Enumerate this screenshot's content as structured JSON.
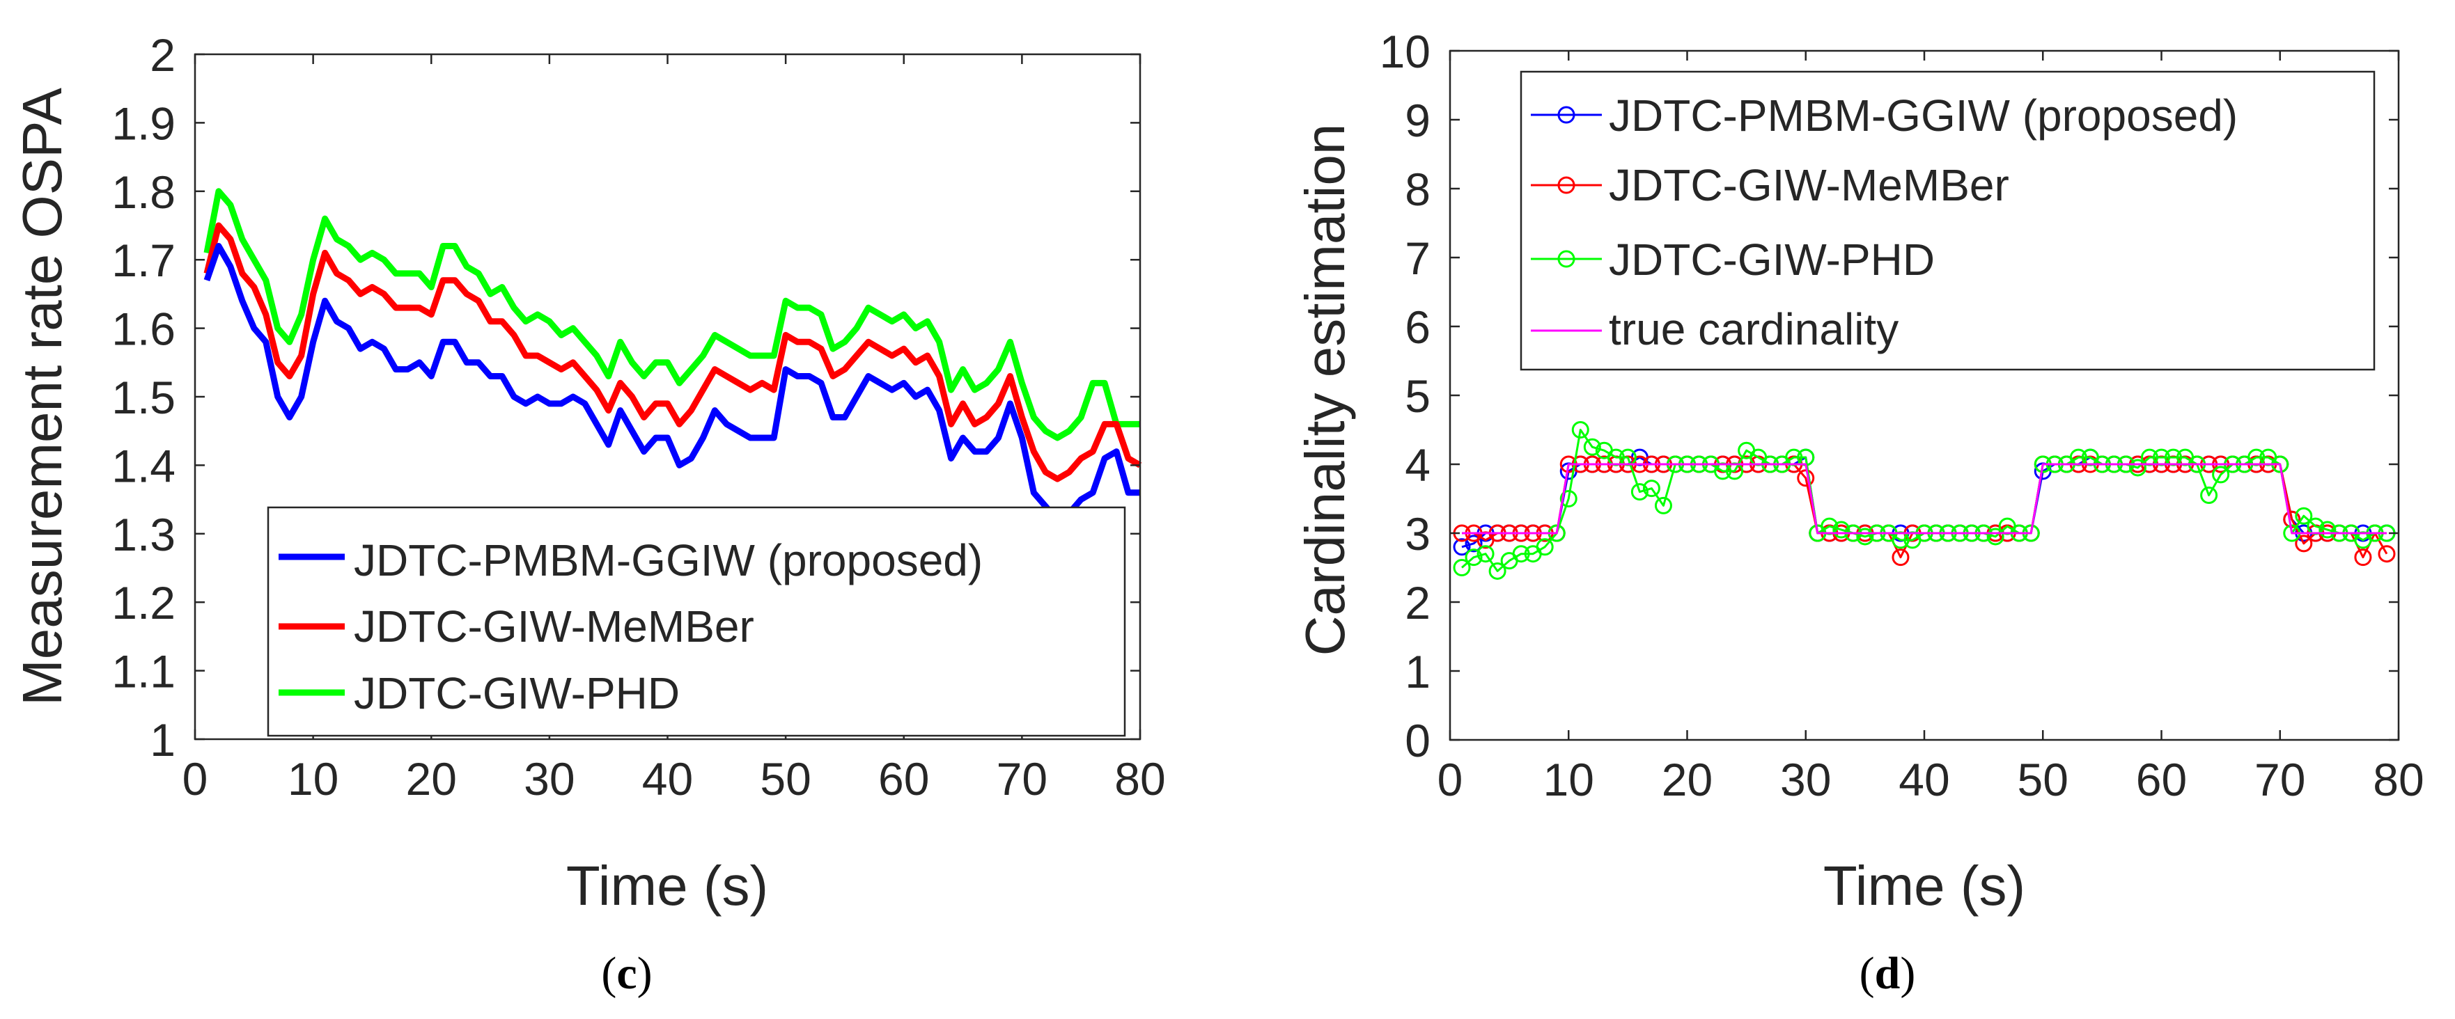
{
  "chart_data": [
    {
      "type": "line",
      "panel_label": "c",
      "xlabel": "Time (s)",
      "ylabel": "Measurement rate OSPA",
      "xlim": [
        0,
        80
      ],
      "ylim": [
        1,
        2
      ],
      "xticks": [
        0,
        10,
        20,
        30,
        40,
        50,
        60,
        70,
        80
      ],
      "yticks": [
        1,
        1.1,
        1.2,
        1.3,
        1.4,
        1.5,
        1.6,
        1.7,
        1.8,
        1.9,
        2
      ],
      "ytick_labels": [
        "1",
        "1.1",
        "1.2",
        "1.3",
        "1.4",
        "1.5",
        "1.6",
        "1.7",
        "1.8",
        "1.9",
        "2"
      ],
      "legend_position": "bottom-left",
      "x": [
        1,
        2,
        3,
        4,
        5,
        6,
        7,
        8,
        9,
        10,
        11,
        12,
        13,
        14,
        15,
        16,
        17,
        18,
        19,
        20,
        21,
        22,
        23,
        24,
        25,
        26,
        27,
        28,
        29,
        30,
        31,
        32,
        33,
        34,
        35,
        36,
        37,
        38,
        39,
        40,
        41,
        42,
        43,
        44,
        45,
        46,
        47,
        48,
        49,
        50,
        51,
        52,
        53,
        54,
        55,
        56,
        57,
        58,
        59,
        60,
        61,
        62,
        63,
        64,
        65,
        66,
        67,
        68,
        69,
        70,
        71,
        72,
        73,
        74,
        75,
        76,
        77,
        78,
        79,
        80
      ],
      "series": [
        {
          "name": "JDTC-PMBM-GGIW (proposed)",
          "color": "#0000ff",
          "values": [
            1.67,
            1.72,
            1.69,
            1.64,
            1.6,
            1.58,
            1.5,
            1.47,
            1.5,
            1.58,
            1.64,
            1.61,
            1.6,
            1.57,
            1.58,
            1.57,
            1.54,
            1.54,
            1.55,
            1.53,
            1.58,
            1.58,
            1.55,
            1.55,
            1.53,
            1.53,
            1.5,
            1.49,
            1.5,
            1.49,
            1.49,
            1.5,
            1.49,
            1.46,
            1.43,
            1.48,
            1.45,
            1.42,
            1.44,
            1.44,
            1.4,
            1.41,
            1.44,
            1.48,
            1.46,
            1.45,
            1.44,
            1.44,
            1.44,
            1.54,
            1.53,
            1.53,
            1.52,
            1.47,
            1.47,
            1.5,
            1.53,
            1.52,
            1.51,
            1.52,
            1.5,
            1.51,
            1.48,
            1.41,
            1.44,
            1.42,
            1.42,
            1.44,
            1.49,
            1.44,
            1.36,
            1.34,
            1.32,
            1.33,
            1.35,
            1.36,
            1.41,
            1.42,
            1.36,
            1.36
          ]
        },
        {
          "name": "JDTC-GIW-MeMBer",
          "color": "#ff0000",
          "values": [
            1.68,
            1.75,
            1.73,
            1.68,
            1.66,
            1.62,
            1.55,
            1.53,
            1.56,
            1.65,
            1.71,
            1.68,
            1.67,
            1.65,
            1.66,
            1.65,
            1.63,
            1.63,
            1.63,
            1.62,
            1.67,
            1.67,
            1.65,
            1.64,
            1.61,
            1.61,
            1.59,
            1.56,
            1.56,
            1.55,
            1.54,
            1.55,
            1.53,
            1.51,
            1.48,
            1.52,
            1.5,
            1.47,
            1.49,
            1.49,
            1.46,
            1.48,
            1.51,
            1.54,
            1.53,
            1.52,
            1.51,
            1.52,
            1.51,
            1.59,
            1.58,
            1.58,
            1.57,
            1.53,
            1.54,
            1.56,
            1.58,
            1.57,
            1.56,
            1.57,
            1.55,
            1.56,
            1.53,
            1.46,
            1.49,
            1.46,
            1.47,
            1.49,
            1.53,
            1.47,
            1.42,
            1.39,
            1.38,
            1.39,
            1.41,
            1.42,
            1.46,
            1.46,
            1.41,
            1.4
          ]
        },
        {
          "name": "JDTC-GIW-PHD",
          "color": "#00ff00",
          "values": [
            1.71,
            1.8,
            1.78,
            1.73,
            1.7,
            1.67,
            1.6,
            1.58,
            1.62,
            1.7,
            1.76,
            1.73,
            1.72,
            1.7,
            1.71,
            1.7,
            1.68,
            1.68,
            1.68,
            1.66,
            1.72,
            1.72,
            1.69,
            1.68,
            1.65,
            1.66,
            1.63,
            1.61,
            1.62,
            1.61,
            1.59,
            1.6,
            1.58,
            1.56,
            1.53,
            1.58,
            1.55,
            1.53,
            1.55,
            1.55,
            1.52,
            1.54,
            1.56,
            1.59,
            1.58,
            1.57,
            1.56,
            1.56,
            1.56,
            1.64,
            1.63,
            1.63,
            1.62,
            1.57,
            1.58,
            1.6,
            1.63,
            1.62,
            1.61,
            1.62,
            1.6,
            1.61,
            1.58,
            1.51,
            1.54,
            1.51,
            1.52,
            1.54,
            1.58,
            1.52,
            1.47,
            1.45,
            1.44,
            1.45,
            1.47,
            1.52,
            1.52,
            1.46,
            1.46,
            1.46
          ]
        }
      ]
    },
    {
      "type": "line",
      "panel_label": "d",
      "xlabel": "Time (s)",
      "ylabel": "Cardinality estimation",
      "xlim": [
        0,
        80
      ],
      "ylim": [
        0,
        10
      ],
      "xticks": [
        0,
        10,
        20,
        30,
        40,
        50,
        60,
        70,
        80
      ],
      "yticks": [
        0,
        1,
        2,
        3,
        4,
        5,
        6,
        7,
        8,
        9,
        10
      ],
      "ytick_labels": [
        "0",
        "1",
        "2",
        "3",
        "4",
        "5",
        "6",
        "7",
        "8",
        "9",
        "10"
      ],
      "legend_position": "top-left",
      "x": [
        1,
        2,
        3,
        4,
        5,
        6,
        7,
        8,
        9,
        10,
        11,
        12,
        13,
        14,
        15,
        16,
        17,
        18,
        19,
        20,
        21,
        22,
        23,
        24,
        25,
        26,
        27,
        28,
        29,
        30,
        31,
        32,
        33,
        34,
        35,
        36,
        37,
        38,
        39,
        40,
        41,
        42,
        43,
        44,
        45,
        46,
        47,
        48,
        49,
        50,
        51,
        52,
        53,
        54,
        55,
        56,
        57,
        58,
        59,
        60,
        61,
        62,
        63,
        64,
        65,
        66,
        67,
        68,
        69,
        70,
        71,
        72,
        73,
        74,
        75,
        76,
        77,
        78,
        79
      ],
      "series": [
        {
          "name": "JDTC-PMBM-GGIW (proposed)",
          "color": "#0000ff",
          "marker": "circle",
          "values": [
            2.8,
            2.85,
            3,
            3,
            3,
            3,
            3,
            3,
            3,
            3.9,
            4,
            4,
            4,
            4,
            4,
            4.1,
            4,
            4,
            4,
            4,
            4,
            4,
            4,
            4,
            4,
            4,
            4,
            4,
            4,
            4.1,
            3,
            3,
            3,
            3,
            3,
            3,
            3,
            3,
            3,
            3,
            3,
            3,
            3,
            3,
            3,
            3,
            3,
            3,
            3,
            3.9,
            4,
            4,
            4,
            4.1,
            4,
            4,
            4,
            4,
            4,
            4,
            4,
            4,
            4,
            4,
            4,
            4,
            4,
            4,
            4,
            4,
            3.2,
            3,
            3,
            3,
            3,
            3,
            3,
            3,
            3
          ]
        },
        {
          "name": "JDTC-GIW-MeMBer",
          "color": "#ff0000",
          "marker": "circle",
          "values": [
            3,
            3,
            2.9,
            3,
            3,
            3,
            3,
            3,
            3,
            4,
            4,
            4,
            4,
            4,
            4,
            4,
            4,
            4,
            4,
            4,
            4,
            4,
            4,
            4,
            4,
            4,
            4,
            4,
            4,
            3.8,
            3,
            3,
            3,
            3,
            3,
            3,
            3,
            2.65,
            3,
            3,
            3,
            3,
            3,
            3,
            3,
            3,
            3,
            3,
            3,
            4,
            4,
            4,
            4,
            4,
            4,
            4,
            4,
            4,
            4,
            4,
            4,
            4,
            4,
            4,
            4,
            4,
            4,
            4,
            4,
            4,
            3.2,
            2.85,
            3,
            3,
            3,
            3,
            2.65,
            3,
            2.7
          ]
        },
        {
          "name": "JDTC-GIW-PHD",
          "color": "#00ff00",
          "marker": "circle",
          "values": [
            2.5,
            2.65,
            2.7,
            2.45,
            2.6,
            2.7,
            2.7,
            2.8,
            3,
            3.5,
            4.5,
            4.25,
            4.2,
            4.1,
            4.1,
            3.6,
            3.65,
            3.4,
            4,
            4,
            4,
            4,
            3.9,
            3.9,
            4.2,
            4.1,
            4,
            4,
            4.1,
            4.1,
            3,
            3.1,
            3.05,
            3,
            2.95,
            3,
            3,
            2.9,
            2.9,
            3,
            3,
            3,
            3,
            3,
            3,
            2.95,
            3.1,
            3,
            3,
            4,
            4,
            4,
            4.1,
            4.1,
            4,
            4,
            4,
            3.95,
            4.1,
            4.1,
            4.1,
            4.1,
            4,
            3.55,
            3.85,
            4,
            4,
            4.1,
            4.1,
            4,
            3,
            3.25,
            3.1,
            3.05,
            3,
            3,
            2.9,
            3,
            3
          ]
        },
        {
          "name": "true cardinality",
          "color": "#ff00ff",
          "values": [
            3,
            3,
            3,
            3,
            3,
            3,
            3,
            3,
            3,
            4,
            4,
            4,
            4,
            4,
            4,
            4,
            4,
            4,
            4,
            4,
            4,
            4,
            4,
            4,
            4,
            4,
            4,
            4,
            4,
            4,
            3,
            3,
            3,
            3,
            3,
            3,
            3,
            3,
            3,
            3,
            3,
            3,
            3,
            3,
            3,
            3,
            3,
            3,
            3,
            4,
            4,
            4,
            4,
            4,
            4,
            4,
            4,
            4,
            4,
            4,
            4,
            4,
            4,
            4,
            4,
            4,
            4,
            4,
            4,
            4,
            3,
            3,
            3,
            3,
            3,
            3,
            3,
            3,
            3
          ]
        }
      ]
    }
  ]
}
